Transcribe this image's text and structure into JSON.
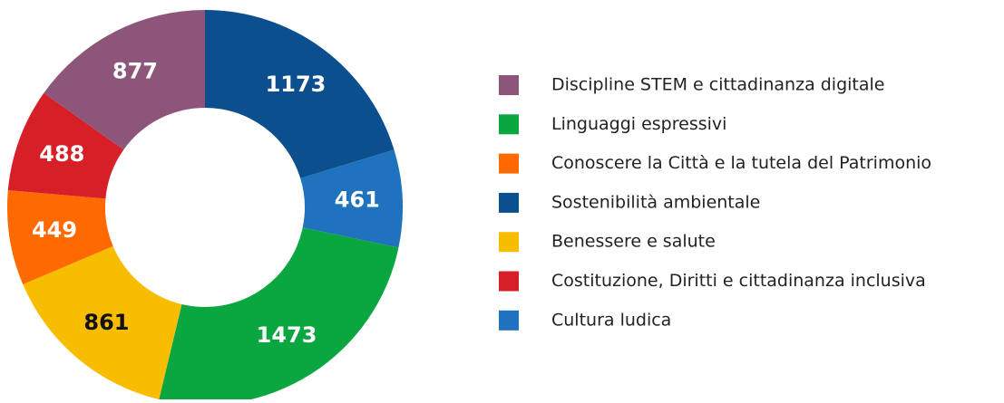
{
  "chart_data": {
    "type": "donut",
    "categories": [
      "Sostenibilità ambientale",
      "Cultura ludica",
      "Linguaggi espressivi",
      "Benessere e salute",
      "Conoscere la Città e la tutela del Patrimonio",
      "Costituzione, Diritti e cittadinanza inclusiva",
      "Discipline STEM e cittadinanza digitale"
    ],
    "values": [
      1173,
      461,
      1473,
      861,
      449,
      488,
      877
    ],
    "colors": [
      "#0b4f8e",
      "#1f73be",
      "#0aa640",
      "#f8bd00",
      "#ff6a00",
      "#d71f27",
      "#8d5579"
    ],
    "legend": "right"
  }
}
